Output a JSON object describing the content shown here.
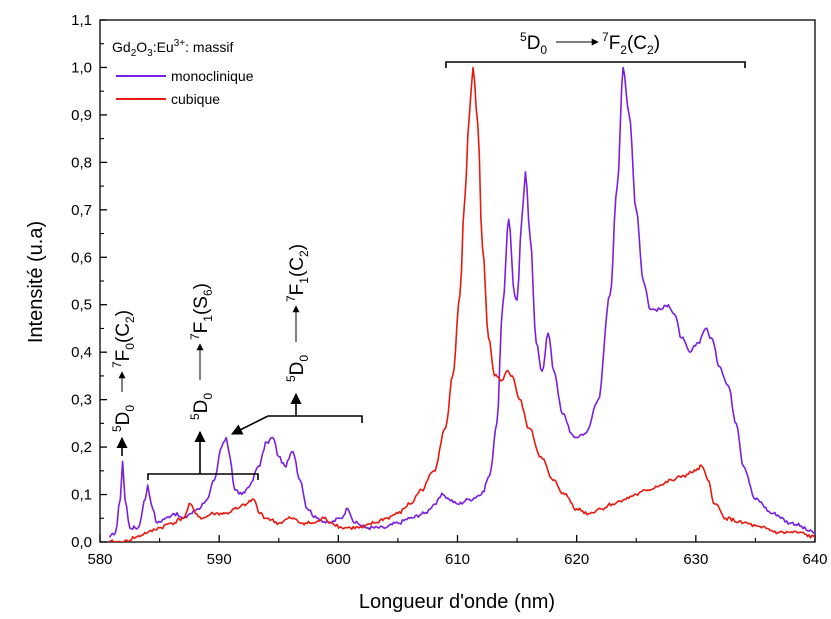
{
  "chart_data": {
    "type": "line",
    "xlabel": "Longueur d'onde (nm)",
    "ylabel": "Intensité (u.a)",
    "xlim": [
      580,
      640
    ],
    "ylim": [
      0.0,
      1.1
    ],
    "x_ticks": [
      580,
      590,
      600,
      610,
      620,
      630,
      640
    ],
    "x_tick_labels": [
      "580",
      "590",
      "600",
      "610",
      "620",
      "630",
      "640"
    ],
    "y_ticks": [
      0.0,
      0.1,
      0.2,
      0.3,
      0.4,
      0.5,
      0.6,
      0.7,
      0.8,
      0.9,
      1.0,
      1.1
    ],
    "y_tick_labels": [
      "0,0",
      "0,1",
      "0,2",
      "0,3",
      "0,4",
      "0,5",
      "0,6",
      "0,7",
      "0,8",
      "0,9",
      "1,0",
      "1,1"
    ],
    "grid": false,
    "legend": {
      "title": "Gd2O3:Eu3+: massif",
      "placement": "top-left"
    },
    "series": [
      {
        "name": "monoclinique",
        "color": "#7a1fe0",
        "x": [
          580.8,
          581.3,
          581.7,
          581.9,
          582.1,
          582.5,
          583.2,
          583.8,
          584.0,
          584.3,
          584.8,
          585.5,
          586.2,
          587.0,
          587.6,
          588.2,
          589.0,
          589.6,
          590.2,
          590.6,
          590.9,
          591.3,
          591.9,
          592.6,
          593.3,
          594.0,
          594.5,
          595.0,
          595.5,
          596.2,
          596.8,
          597.4,
          598.2,
          599.2,
          600.2,
          600.8,
          601.4,
          602.5,
          603.8,
          605.0,
          606.0,
          607.2,
          608.1,
          608.8,
          609.3,
          610.0,
          611.0,
          612.0,
          612.7,
          613.3,
          613.8,
          614.3,
          614.8,
          615.0,
          615.4,
          615.7,
          616.1,
          616.6,
          617.1,
          617.6,
          618.1,
          618.8,
          619.8,
          620.8,
          621.8,
          622.8,
          623.4,
          623.9,
          624.4,
          625.0,
          625.6,
          626.2,
          627.0,
          627.7,
          628.2,
          628.8,
          629.5,
          630.2,
          630.8,
          631.3,
          632.0,
          632.7,
          633.4,
          634.0,
          635.0,
          636.5,
          638.0,
          640.0
        ],
        "y": [
          0.01,
          0.02,
          0.09,
          0.17,
          0.09,
          0.03,
          0.03,
          0.09,
          0.12,
          0.08,
          0.04,
          0.05,
          0.06,
          0.05,
          0.06,
          0.07,
          0.09,
          0.13,
          0.2,
          0.22,
          0.18,
          0.11,
          0.1,
          0.12,
          0.16,
          0.21,
          0.22,
          0.18,
          0.16,
          0.19,
          0.13,
          0.07,
          0.05,
          0.04,
          0.05,
          0.07,
          0.04,
          0.03,
          0.03,
          0.04,
          0.05,
          0.06,
          0.08,
          0.1,
          0.09,
          0.08,
          0.09,
          0.1,
          0.14,
          0.25,
          0.5,
          0.68,
          0.52,
          0.51,
          0.68,
          0.78,
          0.64,
          0.42,
          0.36,
          0.44,
          0.36,
          0.27,
          0.22,
          0.23,
          0.3,
          0.52,
          0.75,
          1.0,
          0.9,
          0.7,
          0.55,
          0.49,
          0.49,
          0.5,
          0.48,
          0.43,
          0.4,
          0.42,
          0.45,
          0.43,
          0.37,
          0.33,
          0.25,
          0.16,
          0.09,
          0.06,
          0.04,
          0.02
        ]
      },
      {
        "name": "cubique",
        "color": "#e8190f",
        "x": [
          580.8,
          581.5,
          582.0,
          583.0,
          584.0,
          585.0,
          586.0,
          587.0,
          587.6,
          588.0,
          588.6,
          589.5,
          590.5,
          591.5,
          592.3,
          592.9,
          593.4,
          594.0,
          595.0,
          596.0,
          597.0,
          598.0,
          598.8,
          599.5,
          600.3,
          601.0,
          602.0,
          603.0,
          604.0,
          605.0,
          606.0,
          607.0,
          608.0,
          609.0,
          609.6,
          610.2,
          610.6,
          611.0,
          611.3,
          611.7,
          612.1,
          612.6,
          613.1,
          613.7,
          614.1,
          614.6,
          615.2,
          616.0,
          617.0,
          618.0,
          619.0,
          620.0,
          621.0,
          622.0,
          623.0,
          624.0,
          625.0,
          626.0,
          627.0,
          628.0,
          629.0,
          630.0,
          630.5,
          631.0,
          631.6,
          632.5,
          634.0,
          635.5,
          637.0,
          638.5,
          640.0
        ],
        "y": [
          0.0,
          0.0,
          0.0,
          0.01,
          0.02,
          0.03,
          0.04,
          0.05,
          0.08,
          0.06,
          0.05,
          0.06,
          0.06,
          0.07,
          0.08,
          0.09,
          0.06,
          0.05,
          0.04,
          0.05,
          0.04,
          0.04,
          0.05,
          0.04,
          0.03,
          0.03,
          0.03,
          0.04,
          0.05,
          0.06,
          0.08,
          0.11,
          0.15,
          0.24,
          0.35,
          0.52,
          0.72,
          0.9,
          1.0,
          0.88,
          0.62,
          0.43,
          0.35,
          0.34,
          0.36,
          0.35,
          0.3,
          0.24,
          0.18,
          0.13,
          0.1,
          0.07,
          0.06,
          0.07,
          0.08,
          0.09,
          0.1,
          0.11,
          0.12,
          0.13,
          0.14,
          0.15,
          0.16,
          0.13,
          0.08,
          0.05,
          0.04,
          0.03,
          0.02,
          0.02,
          0.01
        ]
      }
    ],
    "annotations": {
      "a1": {
        "upper": "5",
        "base1": "D",
        "sub1": "0",
        "upper2": "7",
        "base2": "F",
        "sub2": "0",
        "tail": "(C",
        "sub3": "2",
        "close": ")"
      },
      "a2": {
        "upper": "5",
        "base1": "D",
        "sub1": "0",
        "upper2": "7",
        "base2": "F",
        "sub2": "1",
        "tail": "(S",
        "sub3": "6",
        "close": ")"
      },
      "a3": {
        "upper": "5",
        "base1": "D",
        "sub1": "0",
        "upper2": "7",
        "base2": "F",
        "sub2": "1",
        "tail": "(C",
        "sub3": "2",
        "close": ")"
      },
      "a4": {
        "upper": "5",
        "base1": "D",
        "sub1": "0",
        "upper2": "7",
        "base2": "F",
        "sub2": "2",
        "tail": "(C",
        "sub3": "2",
        "close": ")"
      }
    },
    "legend_title_parts": {
      "a": "Gd",
      "b": "2",
      "c": "O",
      "d": "3",
      "e": ":Eu",
      "f": "3+",
      "g": ": massif"
    }
  }
}
